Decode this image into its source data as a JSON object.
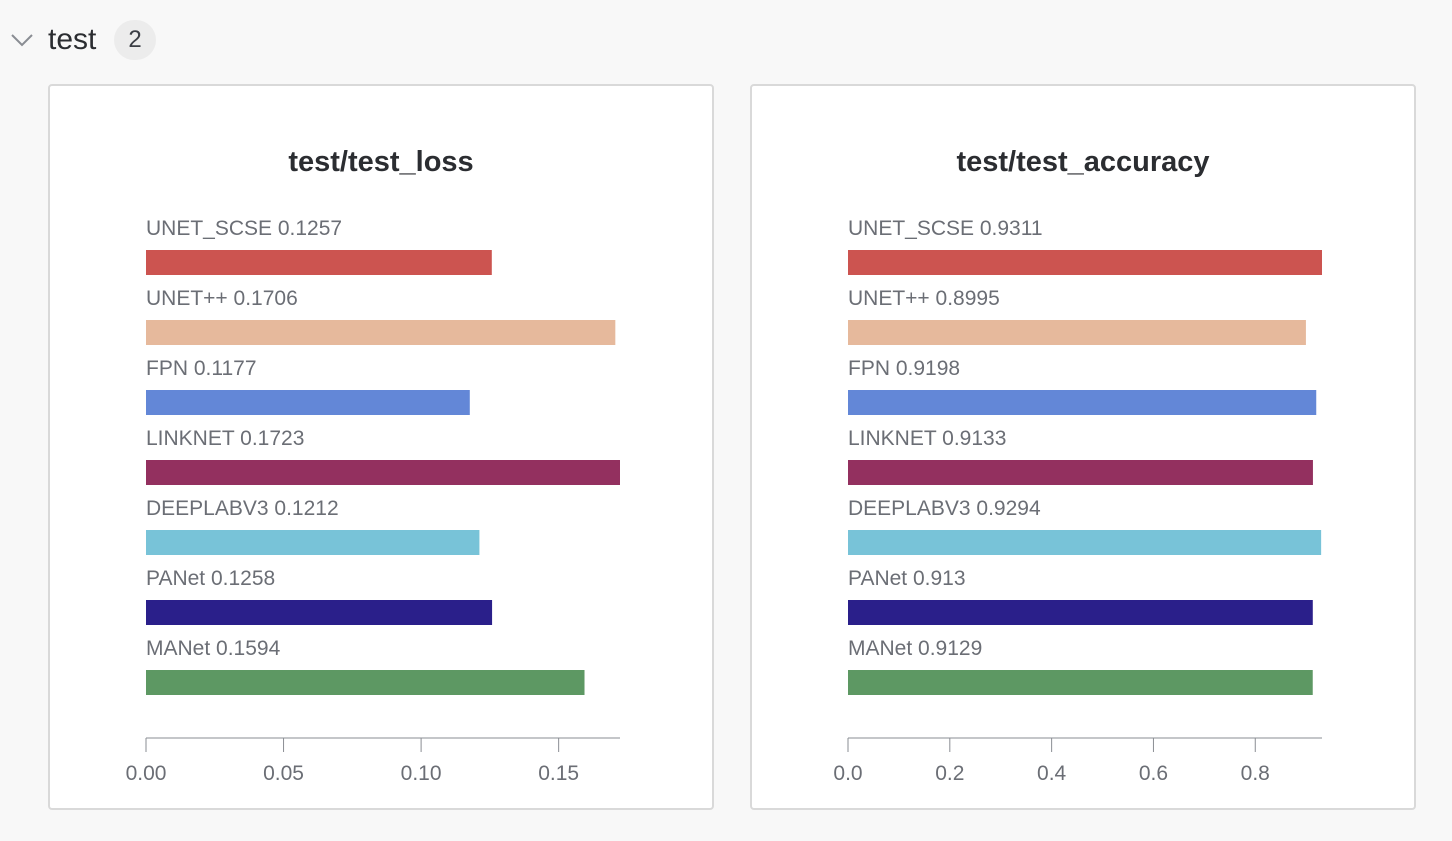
{
  "section": {
    "title": "test",
    "count": "2"
  },
  "icons": {
    "collapse": "chevron-down-icon"
  },
  "colors": {
    "UNET_SCSE": "#cc5450",
    "UNET++": "#e6b99c",
    "FPN": "#6387d7",
    "LINKNET": "#93305f",
    "DEEPLABV3": "#78c3d8",
    "PANet": "#2a1f8a",
    "MANet": "#5d9863"
  },
  "chart_data": [
    {
      "type": "bar",
      "orientation": "horizontal",
      "title": "test/test_loss",
      "categories": [
        "UNET_SCSE",
        "UNET++",
        "FPN",
        "LINKNET",
        "DEEPLABV3",
        "PANet",
        "MANet"
      ],
      "values": [
        0.1257,
        0.1706,
        0.1177,
        0.1723,
        0.1212,
        0.1258,
        0.1594
      ],
      "value_labels": [
        "0.1257",
        "0.1706",
        "0.1177",
        "0.1723",
        "0.1212",
        "0.1258",
        "0.1594"
      ],
      "xlim": [
        0,
        0.1723
      ],
      "xticks": [
        0,
        0.05,
        0.1,
        0.15
      ],
      "xtick_labels": [
        "0.00",
        "0.05",
        "0.10",
        "0.15"
      ],
      "xlabel": "",
      "ylabel": "",
      "grid": false,
      "legend": "inline labels"
    },
    {
      "type": "bar",
      "orientation": "horizontal",
      "title": "test/test_accuracy",
      "categories": [
        "UNET_SCSE",
        "UNET++",
        "FPN",
        "LINKNET",
        "DEEPLABV3",
        "PANet",
        "MANet"
      ],
      "values": [
        0.9311,
        0.8995,
        0.9198,
        0.9133,
        0.9294,
        0.913,
        0.9129
      ],
      "value_labels": [
        "0.9311",
        "0.8995",
        "0.9198",
        "0.9133",
        "0.9294",
        "0.913",
        "0.9129"
      ],
      "xlim": [
        0,
        0.9311
      ],
      "xticks": [
        0,
        0.2,
        0.4,
        0.6,
        0.8
      ],
      "xtick_labels": [
        "0.0",
        "0.2",
        "0.4",
        "0.6",
        "0.8"
      ],
      "xlabel": "",
      "ylabel": "",
      "grid": false,
      "legend": "inline labels"
    }
  ]
}
